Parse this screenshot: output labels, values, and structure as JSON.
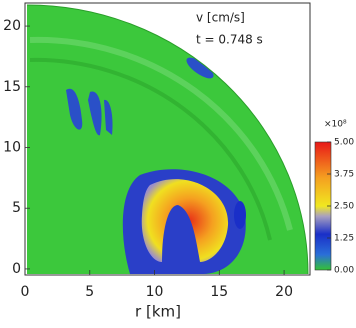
{
  "chart_data": {
    "type": "field",
    "annotations": [
      "v [cm/s]",
      "t = 0.748 s"
    ],
    "xlabel": "r [km]",
    "xlim": [
      0,
      22
    ],
    "xticks": [
      0,
      5,
      10,
      15,
      20
    ],
    "ylim": [
      -0.5,
      21.9
    ],
    "yticks": [
      0,
      5,
      10,
      15,
      20
    ],
    "colorbar": {
      "multiplier": "×10⁸",
      "clim": [
        0,
        5
      ],
      "ticks": [
        {
          "value": 0,
          "label": "0.00"
        },
        {
          "value": 1.25,
          "label": "1.25"
        },
        {
          "value": 2.5,
          "label": "2.50"
        },
        {
          "value": 3.75,
          "label": "3.75"
        },
        {
          "value": 5,
          "label": "5.00"
        }
      ]
    }
  }
}
